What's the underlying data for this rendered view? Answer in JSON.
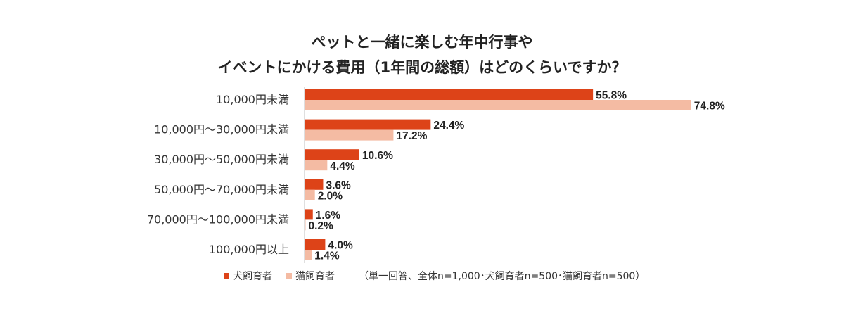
{
  "chart_data": {
    "type": "bar",
    "orientation": "horizontal",
    "title_lines": [
      "ペットと一緒に楽しむ年中行事や",
      "イベントにかける費用（1年間の総額）はどのくらいですか？"
    ],
    "categories": [
      "10,000円未満",
      "10,000円～30,000円未満",
      "30,000円～50,000円未満",
      "50,000円～70,000円未満",
      "70,000円～100,000円未満",
      "100,000円以上"
    ],
    "series": [
      {
        "name": "犬飼育者",
        "color": "#dd4318",
        "values": [
          55.8,
          24.4,
          10.6,
          3.6,
          1.6,
          4.0
        ],
        "labels": [
          "55.8%",
          "24.4%",
          "10.6%",
          "3.6%",
          "1.6%",
          "4.0%"
        ]
      },
      {
        "name": "猫飼育者",
        "color": "#f4bba3",
        "values": [
          74.8,
          17.2,
          4.4,
          2.0,
          0.2,
          1.4
        ],
        "labels": [
          "74.8%",
          "17.2%",
          "4.4%",
          "2.0%",
          "0.2%",
          "1.4%"
        ]
      }
    ],
    "unit": "%",
    "xlim": [
      0,
      75
    ],
    "grid": false,
    "legend_position": "bottom",
    "note": "（単一回答、全体n=1,000･犬飼育者n=500･猫飼育者n=500）"
  }
}
